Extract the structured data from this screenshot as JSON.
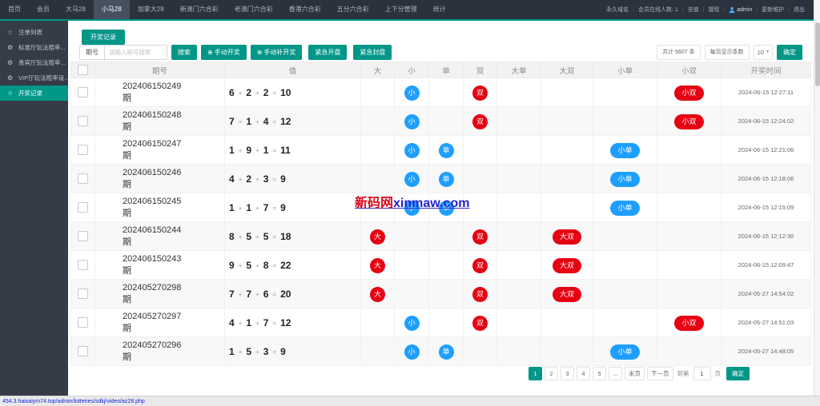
{
  "colors": {
    "accent_teal": "#009688",
    "badge_red": "#e60012",
    "badge_blue": "#1E9FFF"
  },
  "topnav": {
    "items": [
      {
        "label": "首页",
        "active": false
      },
      {
        "label": "会员",
        "active": false
      },
      {
        "label": "大马28",
        "active": false
      },
      {
        "label": "小马28",
        "active": true
      },
      {
        "label": "加拿大28",
        "active": false
      },
      {
        "label": "新澳门六合彩",
        "active": false
      },
      {
        "label": "老澳门六合彩",
        "active": false
      },
      {
        "label": "香港六合彩",
        "active": false
      },
      {
        "label": "五分六合彩",
        "active": false
      },
      {
        "label": "上下分管理",
        "active": false
      },
      {
        "label": "统计",
        "active": false
      }
    ],
    "right": [
      {
        "label": "永久域名"
      },
      {
        "label": "会员在线人数: 1"
      },
      {
        "label": "充值"
      },
      {
        "label": "提现"
      },
      {
        "label": "admin",
        "icon": "user"
      },
      {
        "label": "更新维护"
      },
      {
        "label": "退出"
      }
    ]
  },
  "sidebar": {
    "items": [
      {
        "icon": "star",
        "label": "注单列表",
        "active": false
      },
      {
        "icon": "gear",
        "label": "标准厅玩法赔率...",
        "active": false
      },
      {
        "icon": "gear",
        "label": "贵宾厅玩法赔率...",
        "active": false
      },
      {
        "icon": "gear",
        "label": "VIP厅玩法赔率设...",
        "active": false
      },
      {
        "icon": "star",
        "label": "开奖记录",
        "active": true
      }
    ]
  },
  "toolbar": {
    "tab_label": "开奖记录",
    "search_label": "期号",
    "search_placeholder": "请输入期号搜索",
    "search_button": "搜索",
    "plus_icon": "⊕",
    "manual_draw": "手动开奖",
    "manual_redraw": "手动补开奖",
    "emergency_open": "紧急开盘",
    "emergency_close": "紧急封盘",
    "total_text": "共计 6607 条",
    "per_page_label": "每页显示条数",
    "per_page_value": "10",
    "select_caret": "▾",
    "confirm": "确定"
  },
  "table": {
    "headers": [
      "期号",
      "值",
      "大",
      "小",
      "单",
      "双",
      "大单",
      "大双",
      "小单",
      "小双",
      "开奖时间"
    ],
    "rows": [
      {
        "issue": "202406150249",
        "suffix": "期",
        "values": [
          "6",
          "2",
          "2"
        ],
        "sum": "10",
        "badges": [
          null,
          {
            "t": "小",
            "c": "blue"
          },
          null,
          {
            "t": "双",
            "c": "red"
          },
          null,
          null,
          null,
          {
            "t": "小双",
            "c": "red"
          }
        ],
        "time": "2024-06-15 12:27:11"
      },
      {
        "issue": "202406150248",
        "suffix": "期",
        "values": [
          "7",
          "1",
          "4"
        ],
        "sum": "12",
        "badges": [
          null,
          {
            "t": "小",
            "c": "blue"
          },
          null,
          {
            "t": "双",
            "c": "red"
          },
          null,
          null,
          null,
          {
            "t": "小双",
            "c": "red"
          }
        ],
        "time": "2024-06-15 12:24:02"
      },
      {
        "issue": "202406150247",
        "suffix": "期",
        "values": [
          "1",
          "9",
          "1"
        ],
        "sum": "11",
        "badges": [
          null,
          {
            "t": "小",
            "c": "blue"
          },
          {
            "t": "单",
            "c": "blue"
          },
          null,
          null,
          null,
          {
            "t": "小单",
            "c": "blue"
          },
          null
        ],
        "time": "2024-06-15 12:21:06"
      },
      {
        "issue": "202406150246",
        "suffix": "期",
        "values": [
          "4",
          "2",
          "3"
        ],
        "sum": "9",
        "badges": [
          null,
          {
            "t": "小",
            "c": "blue"
          },
          {
            "t": "单",
            "c": "blue"
          },
          null,
          null,
          null,
          {
            "t": "小单",
            "c": "blue"
          },
          null
        ],
        "time": "2024-06-15 12:18:06"
      },
      {
        "issue": "202406150245",
        "suffix": "期",
        "values": [
          "1",
          "1",
          "7"
        ],
        "sum": "9",
        "badges": [
          null,
          {
            "t": "小",
            "c": "blue"
          },
          {
            "t": "单",
            "c": "blue"
          },
          null,
          null,
          null,
          {
            "t": "小单",
            "c": "blue"
          },
          null
        ],
        "time": "2024-06-15 12:15:09"
      },
      {
        "issue": "202406150244",
        "suffix": "期",
        "values": [
          "8",
          "5",
          "5"
        ],
        "sum": "18",
        "badges": [
          {
            "t": "大",
            "c": "red"
          },
          null,
          null,
          {
            "t": "双",
            "c": "red"
          },
          null,
          {
            "t": "大双",
            "c": "red"
          },
          null,
          null
        ],
        "time": "2024-06-15 12:12:30"
      },
      {
        "issue": "202406150243",
        "suffix": "期",
        "values": [
          "9",
          "5",
          "8"
        ],
        "sum": "22",
        "badges": [
          {
            "t": "大",
            "c": "red"
          },
          null,
          null,
          {
            "t": "双",
            "c": "red"
          },
          null,
          {
            "t": "大双",
            "c": "red"
          },
          null,
          null
        ],
        "time": "2024-06-15 12:09:47"
      },
      {
        "issue": "202405270298",
        "suffix": "期",
        "values": [
          "7",
          "7",
          "6"
        ],
        "sum": "20",
        "badges": [
          {
            "t": "大",
            "c": "red"
          },
          null,
          null,
          {
            "t": "双",
            "c": "red"
          },
          null,
          {
            "t": "大双",
            "c": "red"
          },
          null,
          null
        ],
        "time": "2024-05-27 14:54:02"
      },
      {
        "issue": "202405270297",
        "suffix": "期",
        "values": [
          "4",
          "1",
          "7"
        ],
        "sum": "12",
        "badges": [
          null,
          {
            "t": "小",
            "c": "blue"
          },
          null,
          {
            "t": "双",
            "c": "red"
          },
          null,
          null,
          null,
          {
            "t": "小双",
            "c": "red"
          }
        ],
        "time": "2024-05-27 14:51:03"
      },
      {
        "issue": "202405270296",
        "suffix": "期",
        "values": [
          "1",
          "5",
          "3"
        ],
        "sum": "9",
        "badges": [
          null,
          {
            "t": "小",
            "c": "blue"
          },
          {
            "t": "单",
            "c": "blue"
          },
          null,
          null,
          null,
          {
            "t": "小单",
            "c": "blue"
          },
          null
        ],
        "time": "2024-05-27 14:48:05"
      }
    ]
  },
  "pagination": {
    "pages": [
      {
        "label": "1",
        "active": true
      },
      {
        "label": "2",
        "active": false
      },
      {
        "label": "3",
        "active": false
      },
      {
        "label": "4",
        "active": false
      },
      {
        "label": "5",
        "active": false
      },
      {
        "label": "...",
        "active": false
      },
      {
        "label": "末页",
        "active": false
      },
      {
        "label": "下一页",
        "active": false
      }
    ],
    "goto_label": "到第",
    "goto_value": "1",
    "goto_suffix": "页",
    "confirm_label": "确定"
  },
  "watermark": {
    "cn": "新码网",
    "en": "xinmaw.com"
  },
  "statusbar": {
    "url": "454.3.haixaiym74.top/admin/lotteries/sdkj/video/az28.php"
  }
}
